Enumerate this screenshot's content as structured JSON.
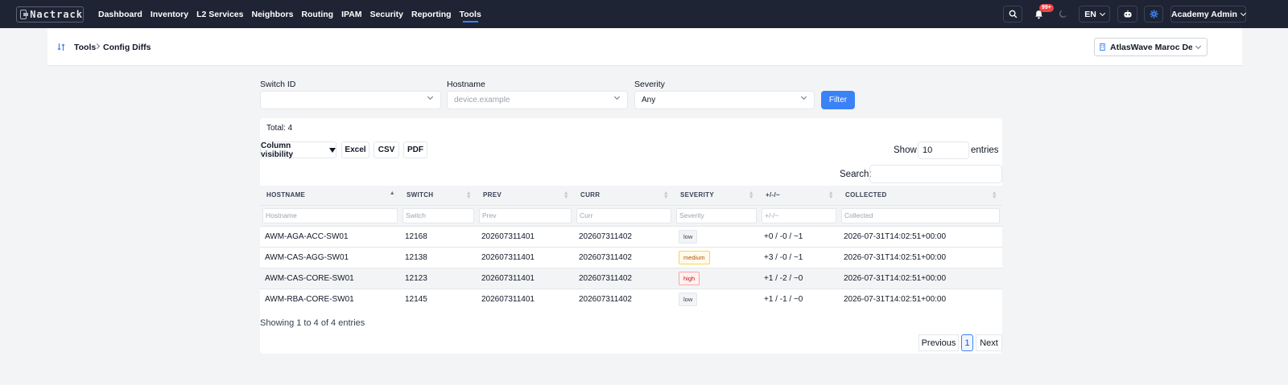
{
  "brand": {
    "name": "Nactrack"
  },
  "nav": {
    "links": [
      {
        "label": "Dashboard",
        "key": "dashboard"
      },
      {
        "label": "Inventory",
        "key": "inventory"
      },
      {
        "label": "L2 Services",
        "key": "l2-services"
      },
      {
        "label": "Neighbors",
        "key": "neighbors"
      },
      {
        "label": "Routing",
        "key": "routing"
      },
      {
        "label": "IPAM",
        "key": "ipam"
      },
      {
        "label": "Security",
        "key": "security"
      },
      {
        "label": "Reporting",
        "key": "reporting"
      },
      {
        "label": "Tools",
        "key": "tools",
        "active": true
      }
    ],
    "notifications_badge": "99+",
    "language": "EN",
    "user": "Academy Admin",
    "icons": [
      "search-icon",
      "bell-icon",
      "moon-icon",
      "robot-icon",
      "gear-icon"
    ]
  },
  "subheader": {
    "breadcrumb": [
      "Tools",
      "Config Diffs"
    ],
    "tenant": "AtlasWave Maroc Demo"
  },
  "filters": {
    "switch_id": {
      "label": "Switch ID",
      "value": ""
    },
    "hostname": {
      "label": "Hostname",
      "placeholder": "device.example"
    },
    "severity": {
      "label": "Severity",
      "value": "Any"
    },
    "submit_label": "Filter"
  },
  "table": {
    "total": "Total: 4",
    "buttons": {
      "column_visibility": "Column visibility",
      "excel": "Excel",
      "csv": "CSV",
      "pdf": "PDF"
    },
    "show_label": "Show",
    "show_value": "10",
    "entries_label": "entries",
    "search_label": "Search:",
    "columns": [
      "HOSTNAME",
      "SWITCH",
      "PREV",
      "CURR",
      "SEVERITY",
      "+/-/~",
      "COLLECTED"
    ],
    "column_filters": [
      "Hostname",
      "Switch",
      "Prev",
      "Curr",
      "Severity",
      "+/-/~",
      "Collected"
    ],
    "rows": [
      {
        "hostname": "AWM-AGA-ACC-SW01",
        "switch": "12168",
        "prev": "202607311401",
        "curr": "202607311402",
        "severity": "low",
        "delta": "+0 / -0 / ~1",
        "collected": "2026-07-31T14:02:51+00:00"
      },
      {
        "hostname": "AWM-CAS-AGG-SW01",
        "switch": "12138",
        "prev": "202607311401",
        "curr": "202607311402",
        "severity": "medium",
        "delta": "+3 / -0 / ~1",
        "collected": "2026-07-31T14:02:51+00:00"
      },
      {
        "hostname": "AWM-CAS-CORE-SW01",
        "switch": "12123",
        "prev": "202607311401",
        "curr": "202607311402",
        "severity": "high",
        "delta": "+1 / -2 / ~0",
        "collected": "2026-07-31T14:02:51+00:00"
      },
      {
        "hostname": "AWM-RBA-CORE-SW01",
        "switch": "12145",
        "prev": "202607311401",
        "curr": "202607311402",
        "severity": "low",
        "delta": "+1 / -1 / ~0",
        "collected": "2026-07-31T14:02:51+00:00"
      }
    ],
    "info": "Showing 1 to 4 of 4 entries",
    "pagination": {
      "previous": "Previous",
      "current": "1",
      "next": "Next"
    }
  },
  "colors": {
    "navbar": "#1e2433",
    "accent": "#3b82f6",
    "page_bg": "#f3f4f6"
  }
}
